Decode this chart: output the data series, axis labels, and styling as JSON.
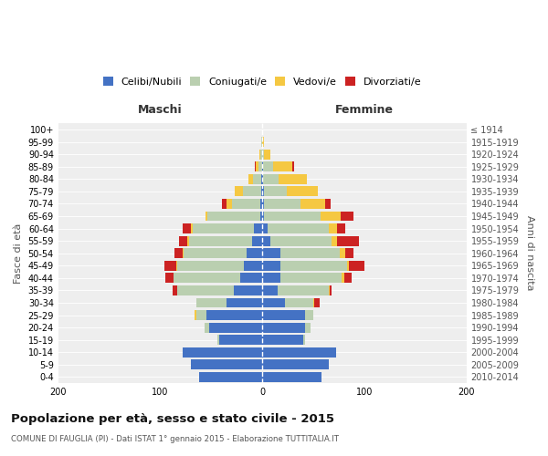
{
  "age_groups": [
    "0-4",
    "5-9",
    "10-14",
    "15-19",
    "20-24",
    "25-29",
    "30-34",
    "35-39",
    "40-44",
    "45-49",
    "50-54",
    "55-59",
    "60-64",
    "65-69",
    "70-74",
    "75-79",
    "80-84",
    "85-89",
    "90-94",
    "95-99",
    "100+"
  ],
  "birth_years": [
    "2010-2014",
    "2005-2009",
    "2000-2004",
    "1995-1999",
    "1990-1994",
    "1985-1989",
    "1980-1984",
    "1975-1979",
    "1970-1974",
    "1965-1969",
    "1960-1964",
    "1955-1959",
    "1950-1954",
    "1945-1949",
    "1940-1944",
    "1935-1939",
    "1930-1934",
    "1925-1929",
    "1920-1924",
    "1915-1919",
    "≤ 1914"
  ],
  "males": {
    "celibi": [
      62,
      70,
      78,
      42,
      52,
      55,
      35,
      28,
      22,
      18,
      15,
      10,
      8,
      2,
      2,
      1,
      1,
      0,
      0,
      0,
      0
    ],
    "coniugati": [
      0,
      0,
      0,
      2,
      5,
      10,
      30,
      55,
      65,
      65,
      62,
      62,
      60,
      52,
      28,
      18,
      8,
      4,
      2,
      1,
      0
    ],
    "vedovi": [
      0,
      0,
      0,
      0,
      0,
      1,
      0,
      0,
      0,
      1,
      1,
      2,
      2,
      2,
      5,
      8,
      5,
      2,
      1,
      0,
      0
    ],
    "divorziati": [
      0,
      0,
      0,
      0,
      0,
      0,
      0,
      5,
      8,
      12,
      8,
      8,
      8,
      0,
      5,
      0,
      0,
      1,
      0,
      0,
      0
    ]
  },
  "females": {
    "nubili": [
      58,
      65,
      72,
      40,
      42,
      42,
      22,
      15,
      18,
      18,
      18,
      8,
      5,
      2,
      2,
      2,
      1,
      1,
      0,
      0,
      0
    ],
    "coniugate": [
      0,
      0,
      0,
      2,
      5,
      8,
      28,
      50,
      60,
      65,
      58,
      60,
      60,
      55,
      35,
      22,
      15,
      10,
      2,
      0,
      0
    ],
    "vedove": [
      0,
      0,
      0,
      0,
      0,
      0,
      1,
      1,
      2,
      2,
      5,
      5,
      8,
      20,
      25,
      30,
      28,
      18,
      6,
      2,
      0
    ],
    "divorziate": [
      0,
      0,
      0,
      0,
      0,
      0,
      5,
      2,
      8,
      15,
      8,
      22,
      8,
      12,
      5,
      0,
      0,
      2,
      0,
      0,
      0
    ]
  },
  "colors": {
    "celibi": "#4472C4",
    "coniugati": "#BACFB0",
    "vedovi": "#F5C842",
    "divorziati": "#CC2222"
  },
  "title": "Popolazione per età, sesso e stato civile - 2015",
  "subtitle": "COMUNE DI FAUGLIA (PI) - Dati ISTAT 1° gennaio 2015 - Elaborazione TUTTITALIA.IT",
  "xlabel_left": "Maschi",
  "xlabel_right": "Femmine",
  "ylabel_left": "Fasce di età",
  "ylabel_right": "Anni di nascita",
  "xlim": 200,
  "legend_labels": [
    "Celibi/Nubili",
    "Coniugati/e",
    "Vedovi/e",
    "Divorziati/e"
  ],
  "plot_bg": "#eeeeee",
  "fig_bg": "#ffffff"
}
